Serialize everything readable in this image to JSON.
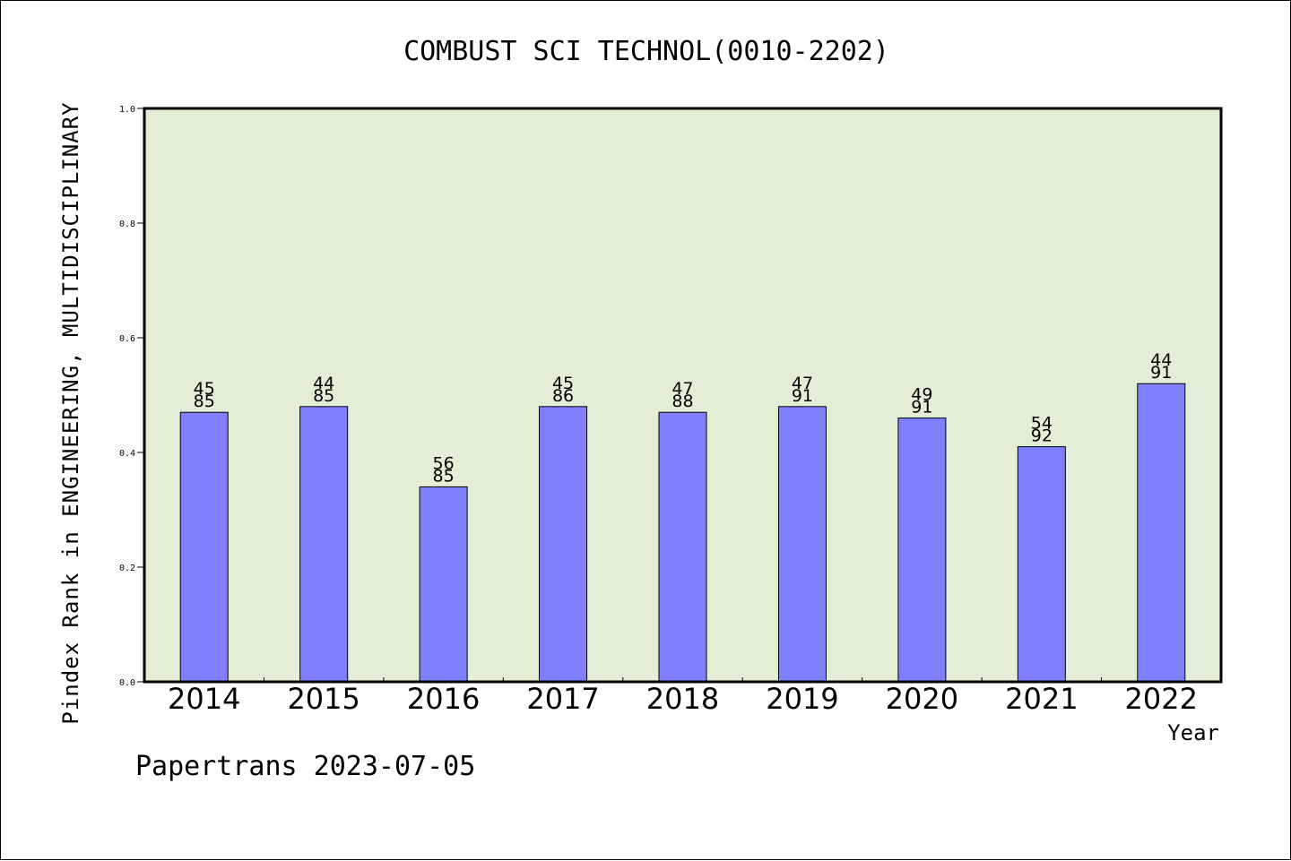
{
  "chart_data": {
    "type": "bar",
    "title": "COMBUST SCI TECHNOL(0010-2202)",
    "ylabel": "Pindex Rank in ENGINEERING, MULTIDISCIPLINARY",
    "xlabel": "Year",
    "categories": [
      "2014",
      "2015",
      "2016",
      "2017",
      "2018",
      "2019",
      "2020",
      "2021",
      "2022"
    ],
    "values": [
      0.47,
      0.48,
      0.34,
      0.48,
      0.47,
      0.48,
      0.46,
      0.41,
      0.52
    ],
    "labels_top": [
      "45",
      "44",
      "56",
      "45",
      "47",
      "47",
      "49",
      "54",
      "44"
    ],
    "labels_bottom": [
      "85",
      "85",
      "85",
      "86",
      "88",
      "91",
      "91",
      "92",
      "91"
    ],
    "ylim": [
      0,
      1.0
    ],
    "yticks": [
      "0.0",
      "0.2",
      "0.4",
      "0.6",
      "0.8",
      "1.0"
    ],
    "grid": false,
    "legend": "none",
    "colors": {
      "plot_background": "#e2efd6",
      "bar": "#8080ff",
      "bar_edge": "#000000"
    }
  },
  "footer": "Papertrans 2023-07-05"
}
